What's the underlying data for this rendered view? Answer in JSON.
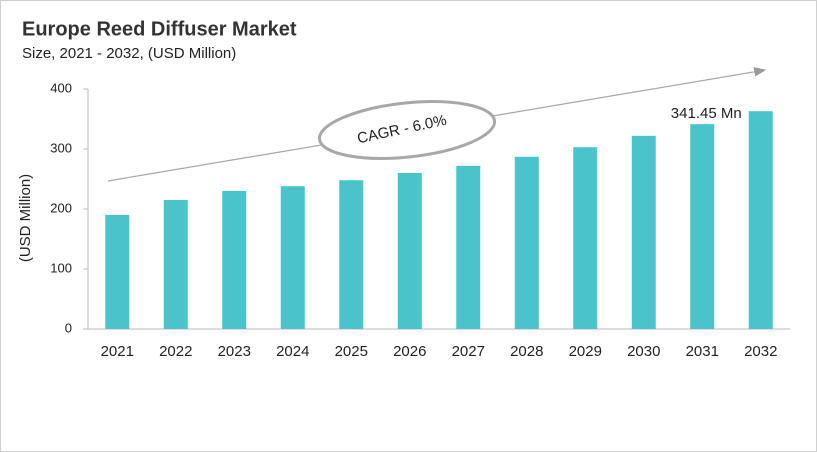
{
  "chart_data": {
    "type": "bar",
    "title": "Europe Reed Diffuser Market",
    "subtitle": "Size, 2021 - 2032, (USD Million)",
    "y_label": "(USD Million)",
    "annotation": "CAGR - 6.0%",
    "categories": [
      "2021",
      "2022",
      "2023",
      "2024",
      "2025",
      "2026",
      "2027",
      "2028",
      "2029",
      "2030",
      "2031",
      "2032"
    ],
    "values": [
      190,
      215,
      230,
      238,
      248,
      260,
      272,
      287,
      303,
      322,
      341.45,
      363
    ],
    "value_labels": [
      null,
      null,
      null,
      null,
      null,
      null,
      null,
      null,
      null,
      null,
      "341.45 Mn",
      null
    ],
    "color": "#4bc3cb",
    "ylim": [
      0,
      400
    ],
    "yticks": [
      0,
      100,
      200,
      300,
      400
    ],
    "grid": false
  }
}
